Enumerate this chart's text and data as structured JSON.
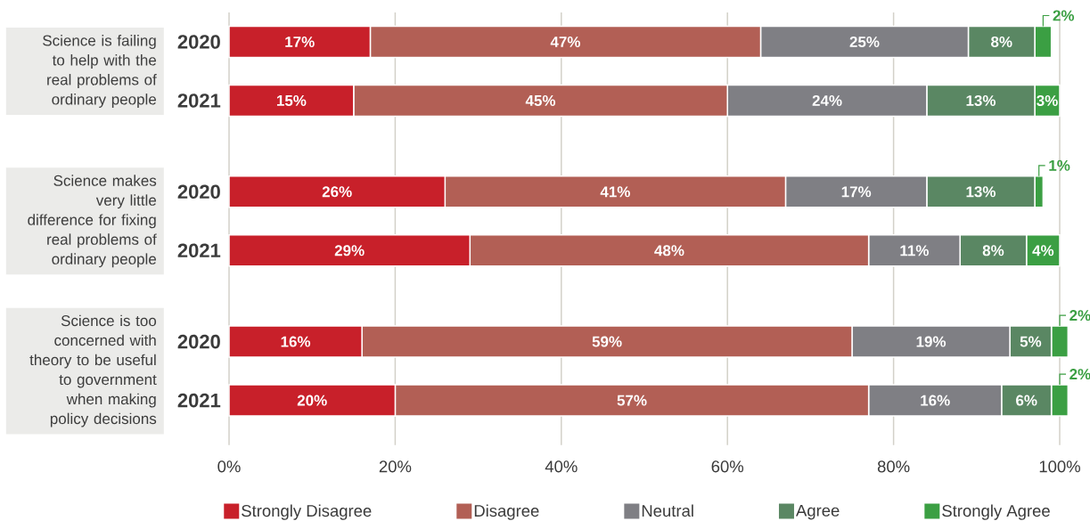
{
  "chart_data": {
    "type": "bar",
    "orientation": "horizontal",
    "stacked": true,
    "categories": [
      "2020",
      "2021",
      "2020",
      "2021",
      "2020",
      "2021"
    ],
    "series": [
      {
        "name": "Strongly Disagree",
        "color": "#c8202a",
        "values": [
          17,
          15,
          26,
          29,
          16,
          20
        ],
        "value_labels": [
          "17%",
          "15%",
          "26%",
          "29%",
          "16%",
          "20%"
        ]
      },
      {
        "name": "Disagree",
        "color": "#b25f55",
        "values": [
          47,
          45,
          41,
          48,
          59,
          57
        ],
        "value_labels": [
          "47%",
          "45%",
          "41%",
          "48%",
          "59%",
          "57%"
        ]
      },
      {
        "name": "Neutral",
        "color": "#7f7f84",
        "values": [
          25,
          24,
          17,
          11,
          19,
          16
        ],
        "value_labels": [
          "25%",
          "24%",
          "17%",
          "11%",
          "19%",
          "16%"
        ]
      },
      {
        "name": "Agree",
        "color": "#5a8763",
        "values": [
          8,
          13,
          13,
          8,
          5,
          6
        ],
        "value_labels": [
          "8%",
          "13%",
          "13%",
          "8%",
          "5%",
          "6%"
        ]
      },
      {
        "name": "Strongly Agree",
        "color": "#3b9f43",
        "values": [
          2,
          3,
          1,
          4,
          2,
          2
        ],
        "value_labels": [
          "2%",
          "3%",
          "1%",
          "4%",
          "2%",
          "2%"
        ]
      }
    ],
    "xlim": [
      0,
      101
    ],
    "xticks": [
      {
        "value": 0,
        "label": "0%"
      },
      {
        "value": 20,
        "label": "20%"
      },
      {
        "value": 40,
        "label": "40%"
      },
      {
        "value": 60,
        "label": "60%"
      },
      {
        "value": 80,
        "label": "80%"
      },
      {
        "value": 100,
        "label": "100%"
      }
    ],
    "grid": "x",
    "legend": "bottom",
    "annotations": [
      "Science is failing to help with the real problems of ordinary people",
      "Science makes very little difference for fixing real problems of ordinary people",
      "Science is too concerned with theory to be useful to government when making policy decisions"
    ]
  }
}
